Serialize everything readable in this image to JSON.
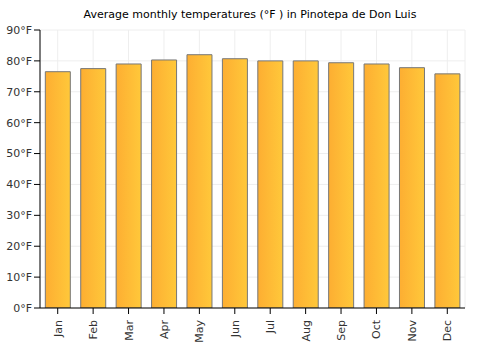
{
  "chart_data": {
    "type": "bar",
    "title": "Average monthly temperatures (°F ) in Pinotepa de Don Luis",
    "categories": [
      "Jan",
      "Feb",
      "Mar",
      "Apr",
      "May",
      "Jun",
      "Jul",
      "Aug",
      "Sep",
      "Oct",
      "Nov",
      "Dec"
    ],
    "values": [
      76.5,
      77.5,
      79,
      80.3,
      82,
      80.7,
      80,
      80,
      79.4,
      79,
      77.8,
      75.8
    ],
    "color": "#fdae32",
    "ylim": [
      0,
      90
    ],
    "yticks": [
      {
        "value": 0,
        "label": "0°F"
      },
      {
        "value": 10,
        "label": "10°F"
      },
      {
        "value": 20,
        "label": "20°F"
      },
      {
        "value": 30,
        "label": "30°F"
      },
      {
        "value": 40,
        "label": "40°F"
      },
      {
        "value": 50,
        "label": "50°F"
      },
      {
        "value": 60,
        "label": "60°F"
      },
      {
        "value": 70,
        "label": "70°F"
      },
      {
        "value": 80,
        "label": "80°F"
      },
      {
        "value": 90,
        "label": "90°F"
      }
    ],
    "grid": true
  }
}
